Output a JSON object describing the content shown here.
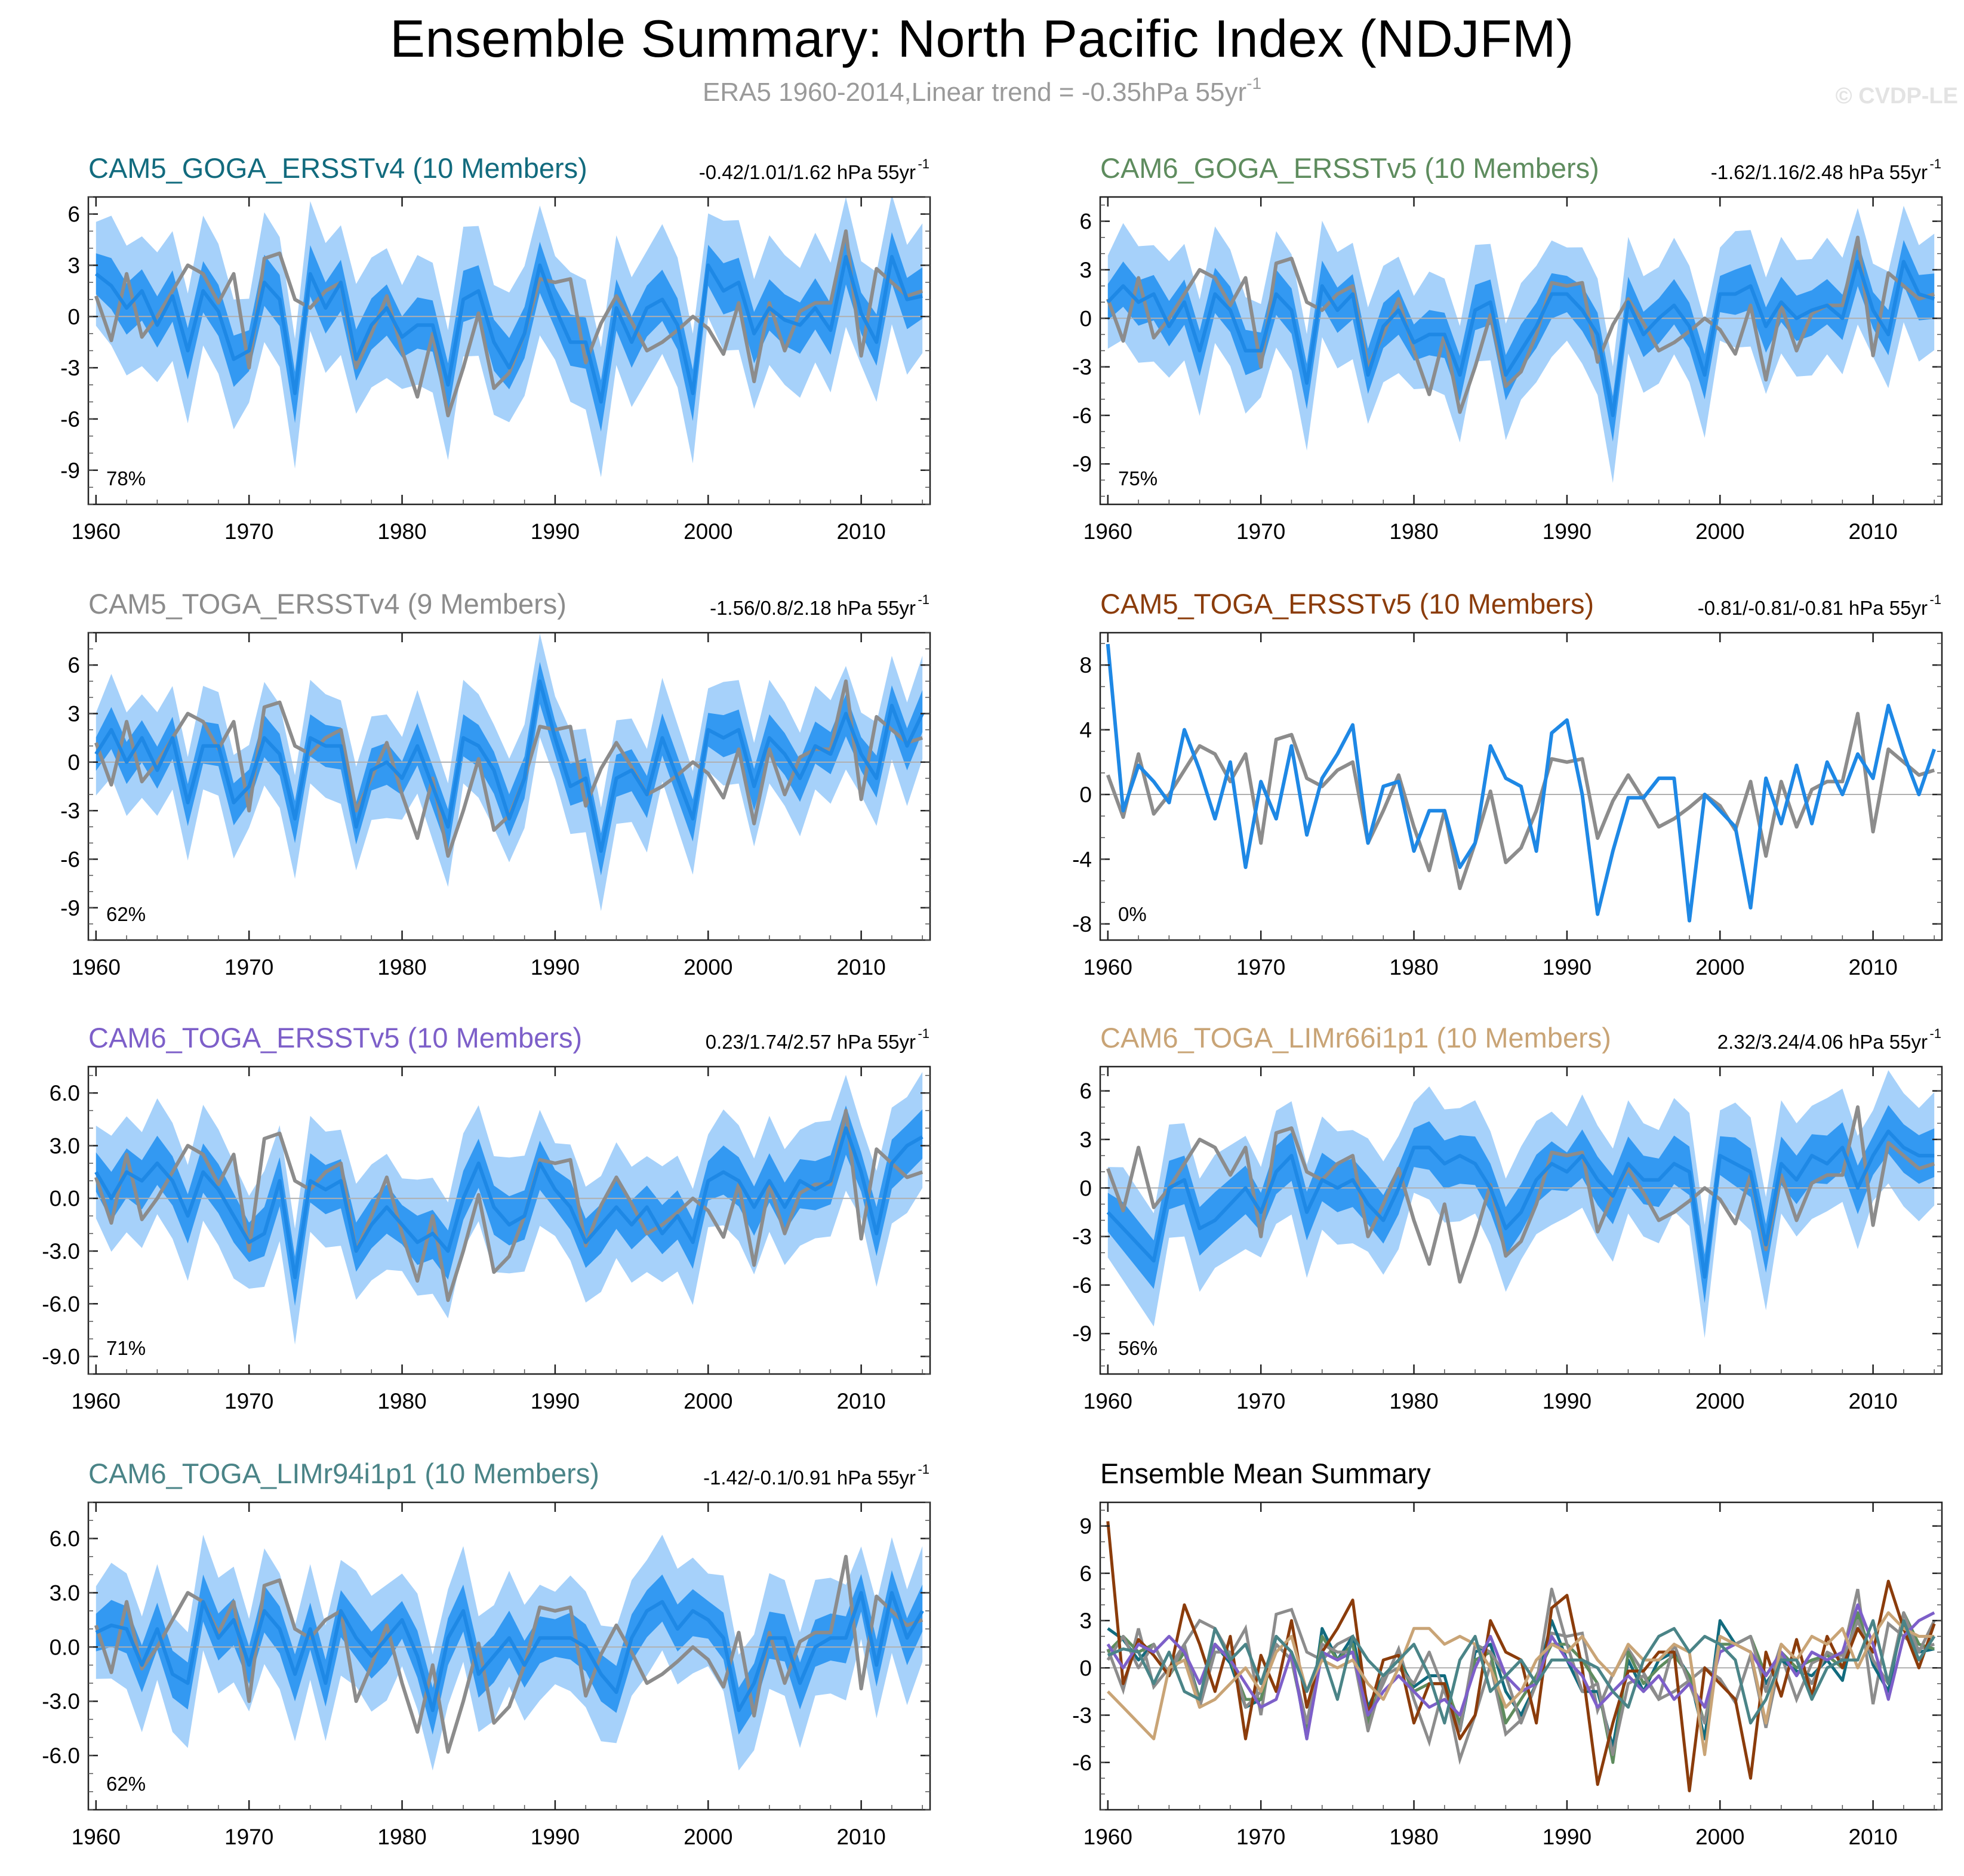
{
  "title": "Ensemble Summary: North Pacific Index (NDJFM)",
  "subtitle": {
    "text": "ERA5 1960-2014,Linear trend = -0.35hPa 55yr",
    "sup": "-1"
  },
  "credit": "© CVDP-LE",
  "colors": {
    "obs": "#8c8c8c",
    "ens_mean": "#1e88e5",
    "band_inner": "#3399f2",
    "band_outer": "#a6d1fa",
    "zero_line": "#b0b0b0"
  },
  "years": [
    1960,
    1961,
    1962,
    1963,
    1964,
    1965,
    1966,
    1967,
    1968,
    1969,
    1970,
    1971,
    1972,
    1973,
    1974,
    1975,
    1976,
    1977,
    1978,
    1979,
    1980,
    1981,
    1982,
    1983,
    1984,
    1985,
    1986,
    1987,
    1988,
    1989,
    1990,
    1991,
    1992,
    1993,
    1994,
    1995,
    1996,
    1997,
    1998,
    1999,
    2000,
    2001,
    2002,
    2003,
    2004,
    2005,
    2006,
    2007,
    2008,
    2009,
    2010,
    2011,
    2012,
    2013,
    2014
  ],
  "observed_era5": [
    1.2,
    -1.4,
    2.5,
    -1.2,
    0.0,
    1.5,
    3.0,
    2.5,
    0.8,
    2.5,
    -3.0,
    3.4,
    3.7,
    1.0,
    0.5,
    1.5,
    2.0,
    -3.0,
    -1.0,
    1.2,
    -2.0,
    -4.7,
    -1.0,
    -5.8,
    -3.0,
    0.2,
    -4.2,
    -3.3,
    -1.0,
    2.2,
    2.0,
    2.2,
    -2.7,
    -0.4,
    1.2,
    -0.3,
    -2.0,
    -1.5,
    -0.8,
    0.0,
    -0.7,
    -2.2,
    0.8,
    -3.8,
    0.8,
    -2.0,
    0.3,
    0.8,
    0.8,
    5.0,
    -2.3,
    2.8,
    2.0,
    1.2,
    1.5
  ],
  "chart_data": [
    {
      "type": "area",
      "name": "CAM5_GOGA_ERSSTv4",
      "title": "CAM5_GOGA_ERSSTv4 (10 Members)",
      "title_color": "#126b7e",
      "trend_label": "-0.42/1.01/1.62 hPa 55yr",
      "trend_sup": "-1",
      "percent": "78%",
      "ylim": [
        -11,
        7
      ],
      "yticks": [
        "6",
        "3",
        "0",
        "-3",
        "-6",
        "-9"
      ],
      "ytick_values": [
        6,
        3,
        0,
        -3,
        -6,
        -9
      ],
      "xticks": [
        "1960",
        "1970",
        "1980",
        "1990",
        "2000",
        "2010"
      ],
      "ens_mean": [
        2.5,
        1.8,
        0.5,
        1.5,
        -0.5,
        1.2,
        -2.0,
        1.5,
        0.3,
        -2.5,
        -2.0,
        2.0,
        1.0,
        -4.5,
        2.5,
        0.5,
        2.0,
        -2.5,
        -0.5,
        0.5,
        -1.2,
        -0.5,
        -0.5,
        -4.0,
        1.0,
        1.5,
        -1.5,
        -3.0,
        -1.0,
        3.0,
        0.5,
        -1.5,
        -1.5,
        -5.0,
        0.5,
        -1.5,
        0.5,
        1.0,
        -0.5,
        -4.5,
        3.0,
        1.5,
        2.0,
        -1.0,
        0.5,
        -0.2,
        -0.5,
        0.5,
        -0.8,
        3.5,
        0.2,
        -1.5,
        3.5,
        1.0,
        1.2
      ],
      "inner_spread": 1.5,
      "outer_spread": 3.8
    },
    {
      "type": "area",
      "name": "CAM6_GOGA_ERSSTv5",
      "title": "CAM6_GOGA_ERSSTv5 (10 Members)",
      "title_color": "#5e8c5e",
      "trend_label": "-1.62/1.16/2.48 hPa 55yr",
      "trend_sup": "-1",
      "percent": "75%",
      "ylim": [
        -11.5,
        7.5
      ],
      "yticks": [
        "6",
        "3",
        "0",
        "-3",
        "-6",
        "-9"
      ],
      "ytick_values": [
        6,
        3,
        0,
        -3,
        -6,
        -9
      ],
      "xticks": [
        "1960",
        "1970",
        "1980",
        "1990",
        "2000",
        "2010"
      ],
      "ens_mean": [
        1.0,
        2.0,
        1.0,
        1.5,
        -0.5,
        1.0,
        -2.0,
        1.5,
        0.5,
        -2.0,
        -2.0,
        1.5,
        0.5,
        -4.0,
        2.0,
        0.5,
        1.5,
        -3.5,
        -0.5,
        0.5,
        -1.5,
        -1.0,
        -1.0,
        -3.5,
        0.5,
        1.0,
        -3.5,
        -2.0,
        -0.5,
        1.5,
        1.5,
        0.5,
        -1.0,
        -6.0,
        1.0,
        -1.0,
        0.0,
        0.8,
        -0.5,
        -3.5,
        1.5,
        1.5,
        2.0,
        -0.5,
        1.0,
        0.0,
        0.5,
        0.8,
        0.0,
        3.5,
        0.5,
        -1.0,
        3.5,
        1.5,
        1.2
      ],
      "inner_spread": 1.4,
      "outer_spread": 3.6
    },
    {
      "type": "area",
      "name": "CAM5_TOGA_ERSSTv4",
      "title": "CAM5_TOGA_ERSSTv4 (9 Members)",
      "title_color": "#8c8c8c",
      "trend_label": "-1.56/0.8/2.18 hPa 55yr",
      "trend_sup": "-1",
      "percent": "62%",
      "ylim": [
        -11,
        8
      ],
      "yticks": [
        "6",
        "3",
        "0",
        "-3",
        "-6",
        "-9"
      ],
      "ytick_values": [
        6,
        3,
        0,
        -3,
        -6,
        -9
      ],
      "xticks": [
        "1960",
        "1970",
        "1980",
        "1990",
        "2000",
        "2010"
      ],
      "ens_mean": [
        0.5,
        2.0,
        0.0,
        1.5,
        -0.5,
        1.5,
        -2.5,
        1.0,
        1.0,
        -2.5,
        -1.5,
        1.5,
        0.5,
        -3.5,
        1.5,
        1.0,
        1.0,
        -4.0,
        -0.5,
        0.0,
        -1.0,
        1.0,
        -1.5,
        -4.0,
        1.5,
        1.0,
        -0.5,
        -3.5,
        -1.0,
        5.0,
        1.5,
        -1.5,
        -1.0,
        -5.5,
        -1.0,
        -0.5,
        -2.0,
        1.5,
        -1.0,
        -3.5,
        2.0,
        1.5,
        2.0,
        -1.5,
        1.5,
        0.5,
        -1.0,
        1.0,
        0.5,
        3.0,
        0.5,
        -1.0,
        3.5,
        1.0,
        3.0
      ],
      "inner_spread": 1.3,
      "outer_spread": 3.2
    },
    {
      "type": "line",
      "name": "CAM5_TOGA_ERSSTv5",
      "title": "CAM5_TOGA_ERSSTv5 (10 Members)",
      "title_color": "#8b3c0b",
      "trend_label": "-0.81/-0.81/-0.81 hPa 55yr",
      "trend_sup": "-1",
      "percent": "0%",
      "ylim": [
        -9,
        10
      ],
      "yticks": [
        "8",
        "4",
        "0",
        "-4",
        "-8"
      ],
      "ytick_values": [
        8,
        4,
        0,
        -4,
        -8
      ],
      "xticks": [
        "1960",
        "1970",
        "1980",
        "1990",
        "2000",
        "2010"
      ],
      "ens_mean": [
        9.3,
        -1.0,
        1.8,
        0.8,
        -0.5,
        4.0,
        1.5,
        -1.5,
        2.0,
        -4.5,
        0.8,
        -1.5,
        3.0,
        -2.5,
        1.0,
        2.5,
        4.3,
        -3.0,
        0.5,
        0.8,
        -3.5,
        -1.0,
        -1.0,
        -4.5,
        -3.0,
        3.0,
        1.0,
        0.5,
        -3.5,
        3.8,
        4.6,
        0.0,
        -7.4,
        -3.5,
        -0.2,
        -0.2,
        1.0,
        1.0,
        -7.8,
        0.0,
        -1.0,
        -2.0,
        -7.0,
        1.0,
        -1.8,
        1.8,
        -1.8,
        2.0,
        0.0,
        2.5,
        1.0,
        5.5,
        2.5,
        0.0,
        2.8
      ],
      "inner_spread": 0,
      "outer_spread": 0
    },
    {
      "type": "area",
      "name": "CAM6_TOGA_ERSSTv5",
      "title": "CAM6_TOGA_ERSSTv5 (10 Members)",
      "title_color": "#7d5fc9",
      "trend_label": "0.23/1.74/2.57 hPa 55yr",
      "trend_sup": "-1",
      "percent": "71%",
      "ylim": [
        -10,
        7.5
      ],
      "yticks": [
        "6.0",
        "3.0",
        "0.0",
        "-3.0",
        "-6.0",
        "-9.0"
      ],
      "ytick_values": [
        6,
        3,
        0,
        -3,
        -6,
        -9
      ],
      "xticks": [
        "1960",
        "1970",
        "1980",
        "1990",
        "2000",
        "2010"
      ],
      "ens_mean": [
        1.5,
        0.0,
        1.5,
        1.0,
        2.0,
        1.0,
        -1.0,
        1.5,
        0.5,
        -1.0,
        -2.5,
        -2.0,
        1.0,
        -4.5,
        1.0,
        0.5,
        1.0,
        -3.0,
        -1.5,
        -0.5,
        -1.5,
        -2.5,
        -2.0,
        -3.0,
        0.0,
        2.0,
        -0.5,
        -1.5,
        -1.0,
        2.0,
        0.5,
        -0.5,
        -2.5,
        -1.5,
        -0.5,
        -1.5,
        -0.5,
        -2.0,
        -1.0,
        -2.5,
        1.0,
        1.5,
        1.0,
        -0.5,
        1.0,
        -0.5,
        1.0,
        0.5,
        1.0,
        4.0,
        1.5,
        -2.0,
        2.0,
        3.0,
        3.5
      ],
      "inner_spread": 1.4,
      "outer_spread": 3.3
    },
    {
      "type": "area",
      "name": "CAM6_TOGA_LIMr66i1p1",
      "title": "CAM6_TOGA_LIMr66i1p1 (10 Members)",
      "title_color": "#c9a476",
      "trend_label": "2.32/3.24/4.06 hPa 55yr",
      "trend_sup": "-1",
      "percent": "56%",
      "ylim": [
        -11.5,
        7.5
      ],
      "yticks": [
        "6",
        "3",
        "0",
        "-3",
        "-6",
        "-9"
      ],
      "ytick_values": [
        6,
        3,
        0,
        -3,
        -6,
        -9
      ],
      "xticks": [
        "1960",
        "1970",
        "1980",
        "1990",
        "2000",
        "2010"
      ],
      "ens_mean": [
        -1.5,
        -2.5,
        -3.5,
        -4.5,
        0.0,
        0.5,
        -2.5,
        -2.0,
        -1.0,
        0.0,
        -1.5,
        1.0,
        2.0,
        -1.5,
        0.5,
        0.0,
        0.5,
        -1.0,
        -2.0,
        0.0,
        2.5,
        2.5,
        1.5,
        2.0,
        1.5,
        0.0,
        -2.5,
        -1.5,
        0.5,
        1.5,
        1.0,
        2.0,
        0.5,
        -0.5,
        1.5,
        0.5,
        0.5,
        1.5,
        1.0,
        -5.5,
        2.0,
        1.5,
        1.0,
        -3.5,
        1.5,
        0.5,
        2.0,
        1.5,
        2.5,
        0.0,
        2.0,
        3.5,
        2.5,
        2.0,
        2.0
      ],
      "inner_spread": 1.5,
      "outer_spread": 3.5
    },
    {
      "type": "area",
      "name": "CAM6_TOGA_LIMr94i1p1",
      "title": "CAM6_TOGA_LIMr94i1p1 (10 Members)",
      "title_color": "#4a8487",
      "trend_label": "-1.42/-0.1/0.91 hPa 55yr",
      "trend_sup": "-1",
      "percent": "62%",
      "ylim": [
        -9,
        8
      ],
      "yticks": [
        "6.0",
        "3.0",
        "0.0",
        "-3.0",
        "-6.0"
      ],
      "ytick_values": [
        6,
        3,
        0,
        -3,
        -6
      ],
      "xticks": [
        "1960",
        "1970",
        "1980",
        "1990",
        "2000",
        "2010"
      ],
      "ens_mean": [
        0.8,
        1.2,
        1.0,
        -1.0,
        1.0,
        -1.5,
        -2.0,
        2.5,
        0.5,
        1.5,
        -1.0,
        2.0,
        1.0,
        -1.5,
        1.0,
        -2.0,
        2.0,
        0.5,
        -0.5,
        0.5,
        1.5,
        -0.5,
        -3.5,
        0.5,
        2.0,
        -1.5,
        -0.5,
        0.5,
        -1.0,
        0.5,
        0.5,
        0.5,
        0.0,
        -1.5,
        -2.5,
        0.5,
        2.0,
        2.5,
        1.0,
        2.0,
        1.5,
        0.5,
        -3.5,
        -2.0,
        0.5,
        0.5,
        -2.0,
        0.0,
        0.5,
        0.5,
        3.0,
        -1.0,
        3.0,
        0.5,
        2.0
      ],
      "inner_spread": 1.3,
      "outer_spread": 3.2
    },
    {
      "type": "line",
      "name": "Ensemble Mean Summary",
      "title": "Ensemble Mean Summary",
      "title_color": "#000000",
      "trend_label": "",
      "trend_sup": "",
      "percent": "",
      "ylim": [
        -9,
        10.5
      ],
      "yticks": [
        "9",
        "6",
        "3",
        "0",
        "-3",
        "-6"
      ],
      "ytick_values": [
        9,
        6,
        3,
        0,
        -3,
        -6
      ],
      "xticks": [
        "1960",
        "1970",
        "1980",
        "1990",
        "2000",
        "2010"
      ],
      "summary": true
    }
  ]
}
